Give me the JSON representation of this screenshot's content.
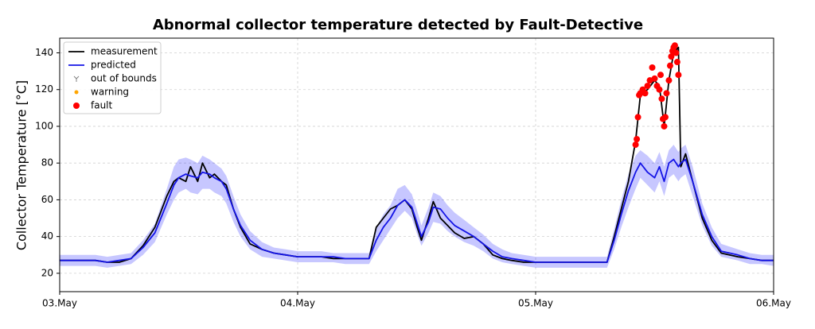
{
  "chart_data": {
    "type": "line",
    "title": "Abnormal collector temperature detected by Fault-Detective",
    "y_label": "Collector Temperature [°C]",
    "xlim": [
      3,
      6
    ],
    "xticks": [
      {
        "value": 3,
        "label": "03.May"
      },
      {
        "value": 4,
        "label": "04.May"
      },
      {
        "value": 5,
        "label": "05.May"
      },
      {
        "value": 6,
        "label": "06.May"
      }
    ],
    "ylim": [
      10,
      148
    ],
    "yticks": [
      20,
      40,
      60,
      80,
      100,
      120,
      140
    ],
    "grid": true,
    "legend": "upper-left",
    "x": [
      3.0,
      3.05,
      3.1,
      3.15,
      3.2,
      3.25,
      3.3,
      3.35,
      3.4,
      3.45,
      3.48,
      3.5,
      3.53,
      3.55,
      3.58,
      3.6,
      3.63,
      3.65,
      3.68,
      3.7,
      3.73,
      3.76,
      3.8,
      3.85,
      3.9,
      3.95,
      4.0,
      4.05,
      4.1,
      4.15,
      4.2,
      4.25,
      4.3,
      4.33,
      4.36,
      4.39,
      4.42,
      4.45,
      4.48,
      4.5,
      4.52,
      4.55,
      4.57,
      4.6,
      4.63,
      4.66,
      4.7,
      4.74,
      4.78,
      4.82,
      4.86,
      4.9,
      4.95,
      5.0,
      5.05,
      5.1,
      5.15,
      5.2,
      5.25,
      5.3,
      5.33,
      5.36,
      5.39,
      5.42,
      5.44,
      5.47,
      5.5,
      5.52,
      5.54,
      5.56,
      5.58,
      5.6,
      5.61,
      5.63,
      5.66,
      5.7,
      5.74,
      5.78,
      5.85,
      5.9,
      5.95,
      6.0
    ],
    "series": [
      {
        "name": "measurement",
        "kind": "line",
        "color": "#000000",
        "values": [
          27,
          27,
          27,
          27,
          26,
          26,
          28,
          35,
          45,
          62,
          70,
          72,
          70,
          78,
          70,
          80,
          72,
          74,
          70,
          68,
          55,
          45,
          36,
          33,
          31,
          30,
          29,
          29,
          29,
          28,
          28,
          28,
          28,
          45,
          50,
          55,
          57,
          60,
          55,
          46,
          38,
          50,
          59,
          50,
          46,
          42,
          39,
          40,
          36,
          30,
          28,
          27,
          26,
          26,
          26,
          26,
          26,
          26,
          26,
          26,
          40,
          55,
          70,
          92,
          117,
          120,
          125,
          122,
          100,
          125,
          140,
          143,
          78,
          85,
          70,
          50,
          38,
          31,
          29,
          28,
          27,
          27
        ]
      },
      {
        "name": "predicted",
        "kind": "line",
        "color": "#1414e6",
        "band_color": "#0000ff",
        "values": [
          27,
          27,
          27,
          27,
          26,
          27,
          28,
          34,
          42,
          58,
          68,
          72,
          74,
          73,
          72,
          75,
          74,
          72,
          70,
          66,
          55,
          46,
          38,
          33,
          31,
          30,
          29,
          29,
          29,
          29,
          28,
          28,
          28,
          38,
          45,
          50,
          57,
          60,
          56,
          48,
          40,
          48,
          56,
          55,
          50,
          46,
          43,
          40,
          36,
          32,
          29,
          28,
          27,
          26,
          26,
          26,
          26,
          26,
          26,
          26,
          38,
          52,
          65,
          75,
          80,
          75,
          72,
          78,
          70,
          80,
          82,
          78,
          80,
          82,
          70,
          52,
          40,
          32,
          30,
          28,
          27,
          27
        ],
        "lower": [
          24,
          24,
          24,
          24,
          23,
          24,
          25,
          30,
          37,
          52,
          60,
          64,
          66,
          64,
          63,
          66,
          66,
          64,
          62,
          58,
          48,
          40,
          33,
          29,
          28,
          27,
          26,
          26,
          26,
          26,
          25,
          25,
          25,
          32,
          38,
          44,
          50,
          54,
          50,
          42,
          35,
          42,
          48,
          47,
          43,
          40,
          37,
          35,
          32,
          28,
          26,
          25,
          24,
          23,
          23,
          23,
          23,
          23,
          23,
          23,
          33,
          45,
          56,
          66,
          72,
          68,
          64,
          70,
          62,
          72,
          74,
          70,
          72,
          74,
          62,
          46,
          35,
          29,
          27,
          25,
          25,
          24
        ],
        "upper": [
          30,
          30,
          30,
          30,
          29,
          30,
          31,
          38,
          47,
          66,
          78,
          82,
          83,
          82,
          80,
          84,
          82,
          80,
          77,
          73,
          62,
          52,
          43,
          37,
          34,
          33,
          32,
          32,
          32,
          31,
          31,
          31,
          31,
          45,
          52,
          57,
          66,
          68,
          63,
          55,
          46,
          56,
          64,
          62,
          57,
          53,
          49,
          45,
          41,
          36,
          33,
          31,
          30,
          29,
          29,
          29,
          29,
          29,
          29,
          29,
          44,
          60,
          74,
          84,
          87,
          84,
          80,
          86,
          78,
          87,
          90,
          86,
          88,
          90,
          78,
          58,
          45,
          36,
          33,
          31,
          30,
          30
        ]
      },
      {
        "name": "out of bounds",
        "kind": "tri",
        "color": "#808080",
        "x": [],
        "values": []
      },
      {
        "name": "warning",
        "kind": "dot",
        "color": "#ffa500",
        "x": [],
        "values": []
      },
      {
        "name": "fault",
        "kind": "circle",
        "color": "#ff0000",
        "x": [
          5.42,
          5.425,
          5.43,
          5.435,
          5.44,
          5.45,
          5.46,
          5.47,
          5.48,
          5.49,
          5.5,
          5.51,
          5.52,
          5.525,
          5.53,
          5.535,
          5.54,
          5.545,
          5.55,
          5.56,
          5.565,
          5.57,
          5.575,
          5.58,
          5.585,
          5.59,
          5.595,
          5.6
        ],
        "values": [
          90,
          93,
          105,
          117,
          118,
          120,
          118,
          122,
          125,
          132,
          126,
          122,
          120,
          128,
          115,
          104,
          100,
          105,
          118,
          125,
          133,
          138,
          141,
          143,
          144,
          140,
          135,
          128
        ]
      }
    ]
  }
}
